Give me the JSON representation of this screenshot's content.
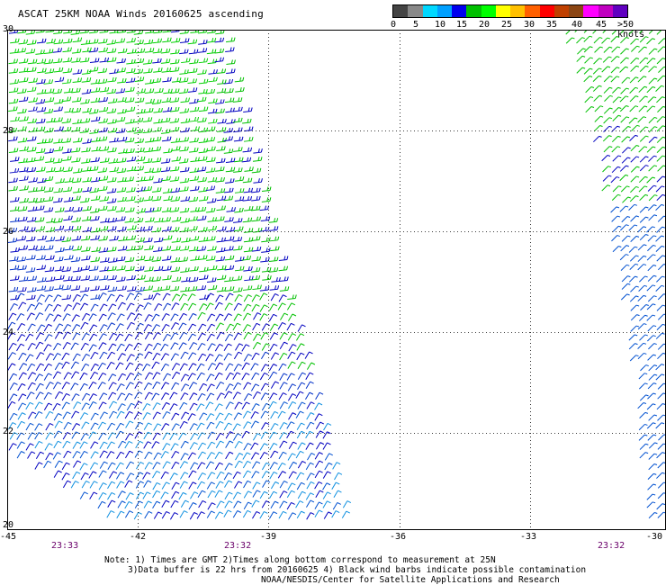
{
  "title": "ASCAT 25KM NOAA Winds 20160625 ascending",
  "legend": {
    "colors": [
      "#444444",
      "#888888",
      "#00d8ff",
      "#00a0ff",
      "#0000ee",
      "#00c000",
      "#00ff00",
      "#ffff00",
      "#ffc000",
      "#ff6000",
      "#ff0000",
      "#c04000",
      "#8b4513",
      "#ff00ff",
      "#c000c0",
      "#6000c0"
    ],
    "labels": [
      "0",
      "5",
      "10",
      "15",
      "20",
      "25",
      "30",
      "35",
      "40",
      "45",
      ">50 knots"
    ]
  },
  "axes": {
    "lat_labels": [
      "30",
      "28",
      "26",
      "24",
      "22",
      "20"
    ],
    "lon_labels": [
      "-45",
      "-42",
      "-39",
      "-36",
      "-33",
      "-30"
    ]
  },
  "times": [
    "23:33",
    "23:32",
    "23:32"
  ],
  "notes": [
    "Note: 1) Times are GMT 2)Times along bottom correspond to measurement at 25N",
    "3)Data buffer is 22 hrs from 20160625 4) Black wind barbs indicate possible contamination",
    "NOAA/NESDIS/Center for Satellite Applications and Research"
  ]
}
